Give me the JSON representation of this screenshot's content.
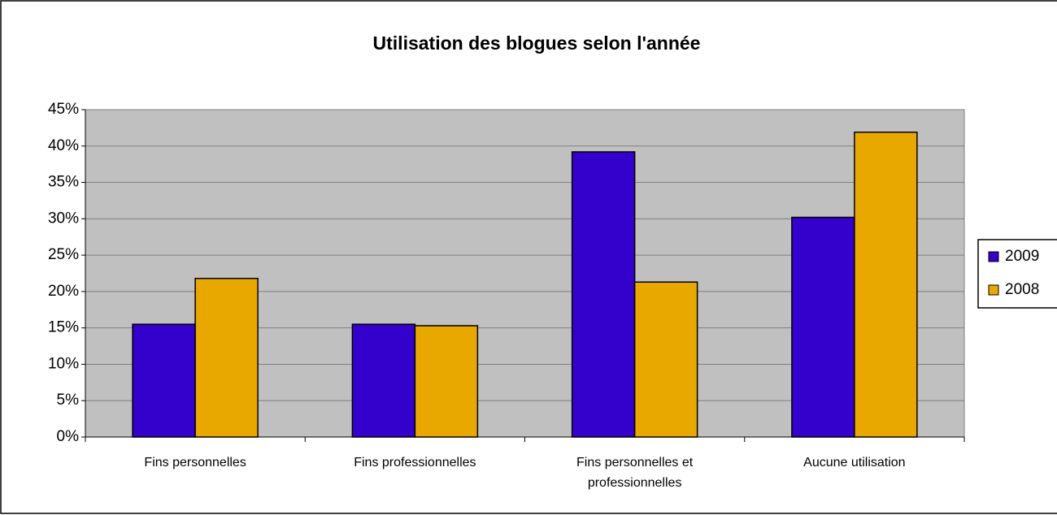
{
  "chart_data": {
    "type": "bar",
    "title": "Utilisation des blogues selon l'année",
    "categories": [
      "Fins personnelles",
      "Fins professionnelles",
      "Fins personnelles et professionnelles",
      "Aucune utilisation"
    ],
    "series": [
      {
        "name": "2009",
        "color": "#3300cc",
        "values": [
          15.5,
          15.5,
          39.2,
          30.2
        ]
      },
      {
        "name": "2008",
        "color": "#e8a800",
        "values": [
          21.8,
          15.3,
          21.3,
          41.9
        ]
      }
    ],
    "ylim": [
      0,
      45
    ],
    "yticks": [
      {
        "value": 0,
        "label": "0%"
      },
      {
        "value": 5,
        "label": "5%"
      },
      {
        "value": 10,
        "label": "10%"
      },
      {
        "value": 15,
        "label": "15%"
      },
      {
        "value": 20,
        "label": "20%"
      },
      {
        "value": 25,
        "label": "25%"
      },
      {
        "value": 30,
        "label": "30%"
      },
      {
        "value": 35,
        "label": "35%"
      },
      {
        "value": 40,
        "label": "40%"
      },
      {
        "value": 45,
        "label": "45%"
      }
    ],
    "grid": true,
    "legend": "right"
  }
}
